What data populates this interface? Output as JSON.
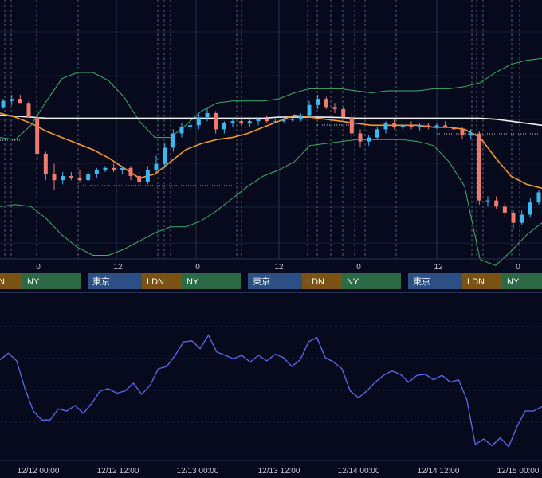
{
  "colors": {
    "background": "#070a1c",
    "grid": "#1a2040",
    "vline": "#5a6078",
    "candle_up": "#3cb8f0",
    "candle_down": "#ef7a6e",
    "bollinger": "#3fae6a",
    "ma_orange": "#f39a2a",
    "ma_white": "#f2f2f2",
    "oscillator": "#5b6cf0",
    "session_tokyo": "#2c4f86",
    "session_london": "#7a5214",
    "session_ny": "#2b6a44",
    "divider": "#2a3050"
  },
  "price_hour_labels": [
    "0",
    "12",
    "0",
    "12",
    "0",
    "12",
    "0"
  ],
  "session_labels": {
    "tokyo": "東京",
    "london": "LDN",
    "ny": "NY"
  },
  "date_labels": [
    "12/12 00:00",
    "12/12 12:00",
    "12/13 00:00",
    "12/13 12:00",
    "12/14 00:00",
    "12/14 12:00",
    "12/15 00:00"
  ],
  "chart_data": [
    {
      "type": "candlestick",
      "title": "",
      "series": [
        {
          "type": "bollinger_upper",
          "values": [
            0.48,
            0.47,
            0.54,
            0.66,
            0.77,
            0.8,
            0.8,
            0.76,
            0.68,
            0.56,
            0.48,
            0.48,
            0.54,
            0.61,
            0.65,
            0.66,
            0.66,
            0.66,
            0.67,
            0.7,
            0.72,
            0.72,
            0.72,
            0.71,
            0.7,
            0.71,
            0.71,
            0.71,
            0.72,
            0.72,
            0.73,
            0.75,
            0.8,
            0.84,
            0.86,
            0.87
          ]
        },
        {
          "type": "bollinger_lower",
          "values": [
            0.14,
            0.15,
            0.14,
            0.08,
            0.0,
            -0.06,
            -0.1,
            -0.1,
            -0.07,
            -0.03,
            0.01,
            0.04,
            0.04,
            0.07,
            0.12,
            0.18,
            0.24,
            0.29,
            0.32,
            0.36,
            0.44,
            0.45,
            0.46,
            0.47,
            0.47,
            0.47,
            0.47,
            0.46,
            0.44,
            0.36,
            0.24,
            -0.12,
            -0.15,
            -0.08,
            0.0,
            0.06
          ]
        },
        {
          "type": "ma_orange",
          "values": [
            0.6,
            0.58,
            0.55,
            0.51,
            0.48,
            0.45,
            0.42,
            0.38,
            0.33,
            0.28,
            0.3,
            0.36,
            0.42,
            0.45,
            0.47,
            0.48,
            0.5,
            0.53,
            0.56,
            0.59,
            0.58,
            0.57,
            0.56,
            0.55,
            0.54,
            0.54,
            0.54,
            0.54,
            0.53,
            0.53,
            0.52,
            0.48,
            0.38,
            0.29,
            0.25,
            0.23
          ]
        },
        {
          "type": "ma_white",
          "values": [
            0.59,
            0.585,
            0.58,
            0.575,
            0.575,
            0.575,
            0.575,
            0.575,
            0.575,
            0.575,
            0.575,
            0.575,
            0.575,
            0.575,
            0.575,
            0.575,
            0.575,
            0.575,
            0.58,
            0.58,
            0.58,
            0.58,
            0.578,
            0.575,
            0.575,
            0.575,
            0.575,
            0.575,
            0.575,
            0.575,
            0.575,
            0.575,
            0.57,
            0.56,
            0.55,
            0.54
          ]
        },
        {
          "type": "candles",
          "values": [
            [
              0.63,
              0.67,
              0.62,
              0.66
            ],
            [
              0.66,
              0.69,
              0.64,
              0.67
            ],
            [
              0.67,
              0.69,
              0.65,
              0.65
            ],
            [
              0.65,
              0.66,
              0.58,
              0.58
            ],
            [
              0.58,
              0.59,
              0.37,
              0.4
            ],
            [
              0.4,
              0.41,
              0.27,
              0.3
            ],
            [
              0.3,
              0.35,
              0.22,
              0.27
            ],
            [
              0.27,
              0.31,
              0.25,
              0.29
            ],
            [
              0.29,
              0.31,
              0.27,
              0.28
            ],
            [
              0.28,
              0.32,
              0.26,
              0.27
            ],
            [
              0.27,
              0.31,
              0.26,
              0.3
            ],
            [
              0.3,
              0.33,
              0.28,
              0.32
            ],
            [
              0.32,
              0.34,
              0.31,
              0.33
            ],
            [
              0.33,
              0.35,
              0.31,
              0.32
            ],
            [
              0.32,
              0.34,
              0.3,
              0.33
            ],
            [
              0.33,
              0.34,
              0.27,
              0.29
            ],
            [
              0.29,
              0.31,
              0.25,
              0.26
            ],
            [
              0.26,
              0.34,
              0.25,
              0.32
            ],
            [
              0.32,
              0.39,
              0.31,
              0.35
            ],
            [
              0.35,
              0.45,
              0.33,
              0.43
            ],
            [
              0.43,
              0.52,
              0.41,
              0.5
            ],
            [
              0.5,
              0.55,
              0.48,
              0.53
            ],
            [
              0.53,
              0.56,
              0.51,
              0.54
            ],
            [
              0.54,
              0.6,
              0.52,
              0.58
            ],
            [
              0.58,
              0.63,
              0.56,
              0.6
            ],
            [
              0.6,
              0.61,
              0.5,
              0.52
            ],
            [
              0.52,
              0.56,
              0.5,
              0.55
            ],
            [
              0.55,
              0.58,
              0.53,
              0.56
            ],
            [
              0.56,
              0.58,
              0.54,
              0.55
            ],
            [
              0.55,
              0.57,
              0.53,
              0.56
            ],
            [
              0.56,
              0.58,
              0.54,
              0.57
            ],
            [
              0.57,
              0.59,
              0.55,
              0.56
            ],
            [
              0.56,
              0.57,
              0.55,
              0.56
            ],
            [
              0.56,
              0.58,
              0.55,
              0.57
            ],
            [
              0.57,
              0.58,
              0.56,
              0.57
            ],
            [
              0.57,
              0.6,
              0.56,
              0.59
            ],
            [
              0.59,
              0.66,
              0.58,
              0.64
            ],
            [
              0.64,
              0.69,
              0.62,
              0.67
            ],
            [
              0.67,
              0.68,
              0.62,
              0.63
            ],
            [
              0.63,
              0.65,
              0.6,
              0.62
            ],
            [
              0.62,
              0.63,
              0.58,
              0.58
            ],
            [
              0.58,
              0.6,
              0.48,
              0.5
            ],
            [
              0.5,
              0.52,
              0.43,
              0.46
            ],
            [
              0.46,
              0.49,
              0.44,
              0.48
            ],
            [
              0.48,
              0.53,
              0.47,
              0.52
            ],
            [
              0.52,
              0.56,
              0.5,
              0.55
            ],
            [
              0.55,
              0.57,
              0.52,
              0.53
            ],
            [
              0.53,
              0.55,
              0.51,
              0.54
            ],
            [
              0.54,
              0.56,
              0.52,
              0.53
            ],
            [
              0.53,
              0.55,
              0.51,
              0.54
            ],
            [
              0.54,
              0.55,
              0.52,
              0.53
            ],
            [
              0.53,
              0.55,
              0.52,
              0.54
            ],
            [
              0.54,
              0.56,
              0.53,
              0.53
            ],
            [
              0.53,
              0.54,
              0.51,
              0.52
            ],
            [
              0.52,
              0.53,
              0.47,
              0.49
            ],
            [
              0.49,
              0.52,
              0.47,
              0.5
            ],
            [
              0.5,
              0.51,
              0.15,
              0.17
            ],
            [
              0.17,
              0.19,
              0.14,
              0.17
            ],
            [
              0.17,
              0.19,
              0.13,
              0.14
            ],
            [
              0.14,
              0.16,
              0.09,
              0.11
            ],
            [
              0.11,
              0.12,
              0.03,
              0.06
            ],
            [
              0.06,
              0.12,
              0.05,
              0.1
            ],
            [
              0.1,
              0.18,
              0.09,
              0.16
            ],
            [
              0.16,
              0.22,
              0.15,
              0.21
            ]
          ]
        }
      ]
    },
    {
      "type": "line",
      "title": "",
      "values": [
        0.56,
        0.62,
        0.55,
        0.3,
        0.1,
        0.02,
        0.02,
        0.12,
        0.1,
        0.15,
        0.08,
        0.17,
        0.28,
        0.3,
        0.26,
        0.28,
        0.35,
        0.25,
        0.33,
        0.48,
        0.5,
        0.6,
        0.72,
        0.73,
        0.66,
        0.78,
        0.63,
        0.6,
        0.57,
        0.6,
        0.54,
        0.6,
        0.55,
        0.61,
        0.58,
        0.5,
        0.56,
        0.72,
        0.76,
        0.58,
        0.54,
        0.48,
        0.28,
        0.22,
        0.28,
        0.36,
        0.42,
        0.46,
        0.43,
        0.36,
        0.42,
        0.43,
        0.38,
        0.42,
        0.36,
        0.38,
        0.2,
        -0.2,
        -0.15,
        -0.21,
        -0.14,
        -0.22,
        -0.04,
        0.1,
        0.1,
        0.14
      ]
    }
  ]
}
